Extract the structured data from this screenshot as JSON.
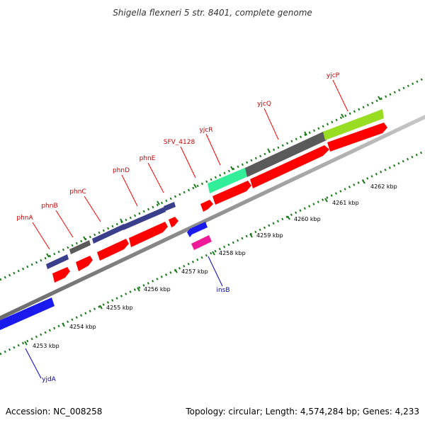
{
  "title": "Shigella flexneri 5 str. 8401, complete genome",
  "footer": {
    "accession": "Accession: NC_008258",
    "summary": "Topology: circular; Length: 4,574,284 bp; Genes: 4,233"
  },
  "colors": {
    "cds": "#ff0000",
    "backbone": "#808080",
    "tick": "#1a7a1a",
    "label_forward": "#cc0000",
    "label_reverse": "#0000aa",
    "feature_navy": "#3a3f8c",
    "feature_gray": "#5a5a5a",
    "feature_mint": "#33ee99",
    "feature_lime": "#99dd22",
    "feature_blue": "#1a1aee",
    "feature_pink": "#ee1a99"
  },
  "kbp_ticks": [
    "4253 kbp",
    "4254 kbp",
    "4255 kbp",
    "4256 kbp",
    "4257 kbp",
    "4258 kbp",
    "4259 kbp",
    "4260 kbp",
    "4261 kbp",
    "4262 kbp"
  ],
  "forward_labels": [
    "phnA",
    "phnB",
    "phnC",
    "phnD",
    "phnE",
    "SFV_4128",
    "yjcR",
    "yjcQ",
    "yjcP"
  ],
  "reverse_labels": [
    "yjdA",
    "insB"
  ]
}
